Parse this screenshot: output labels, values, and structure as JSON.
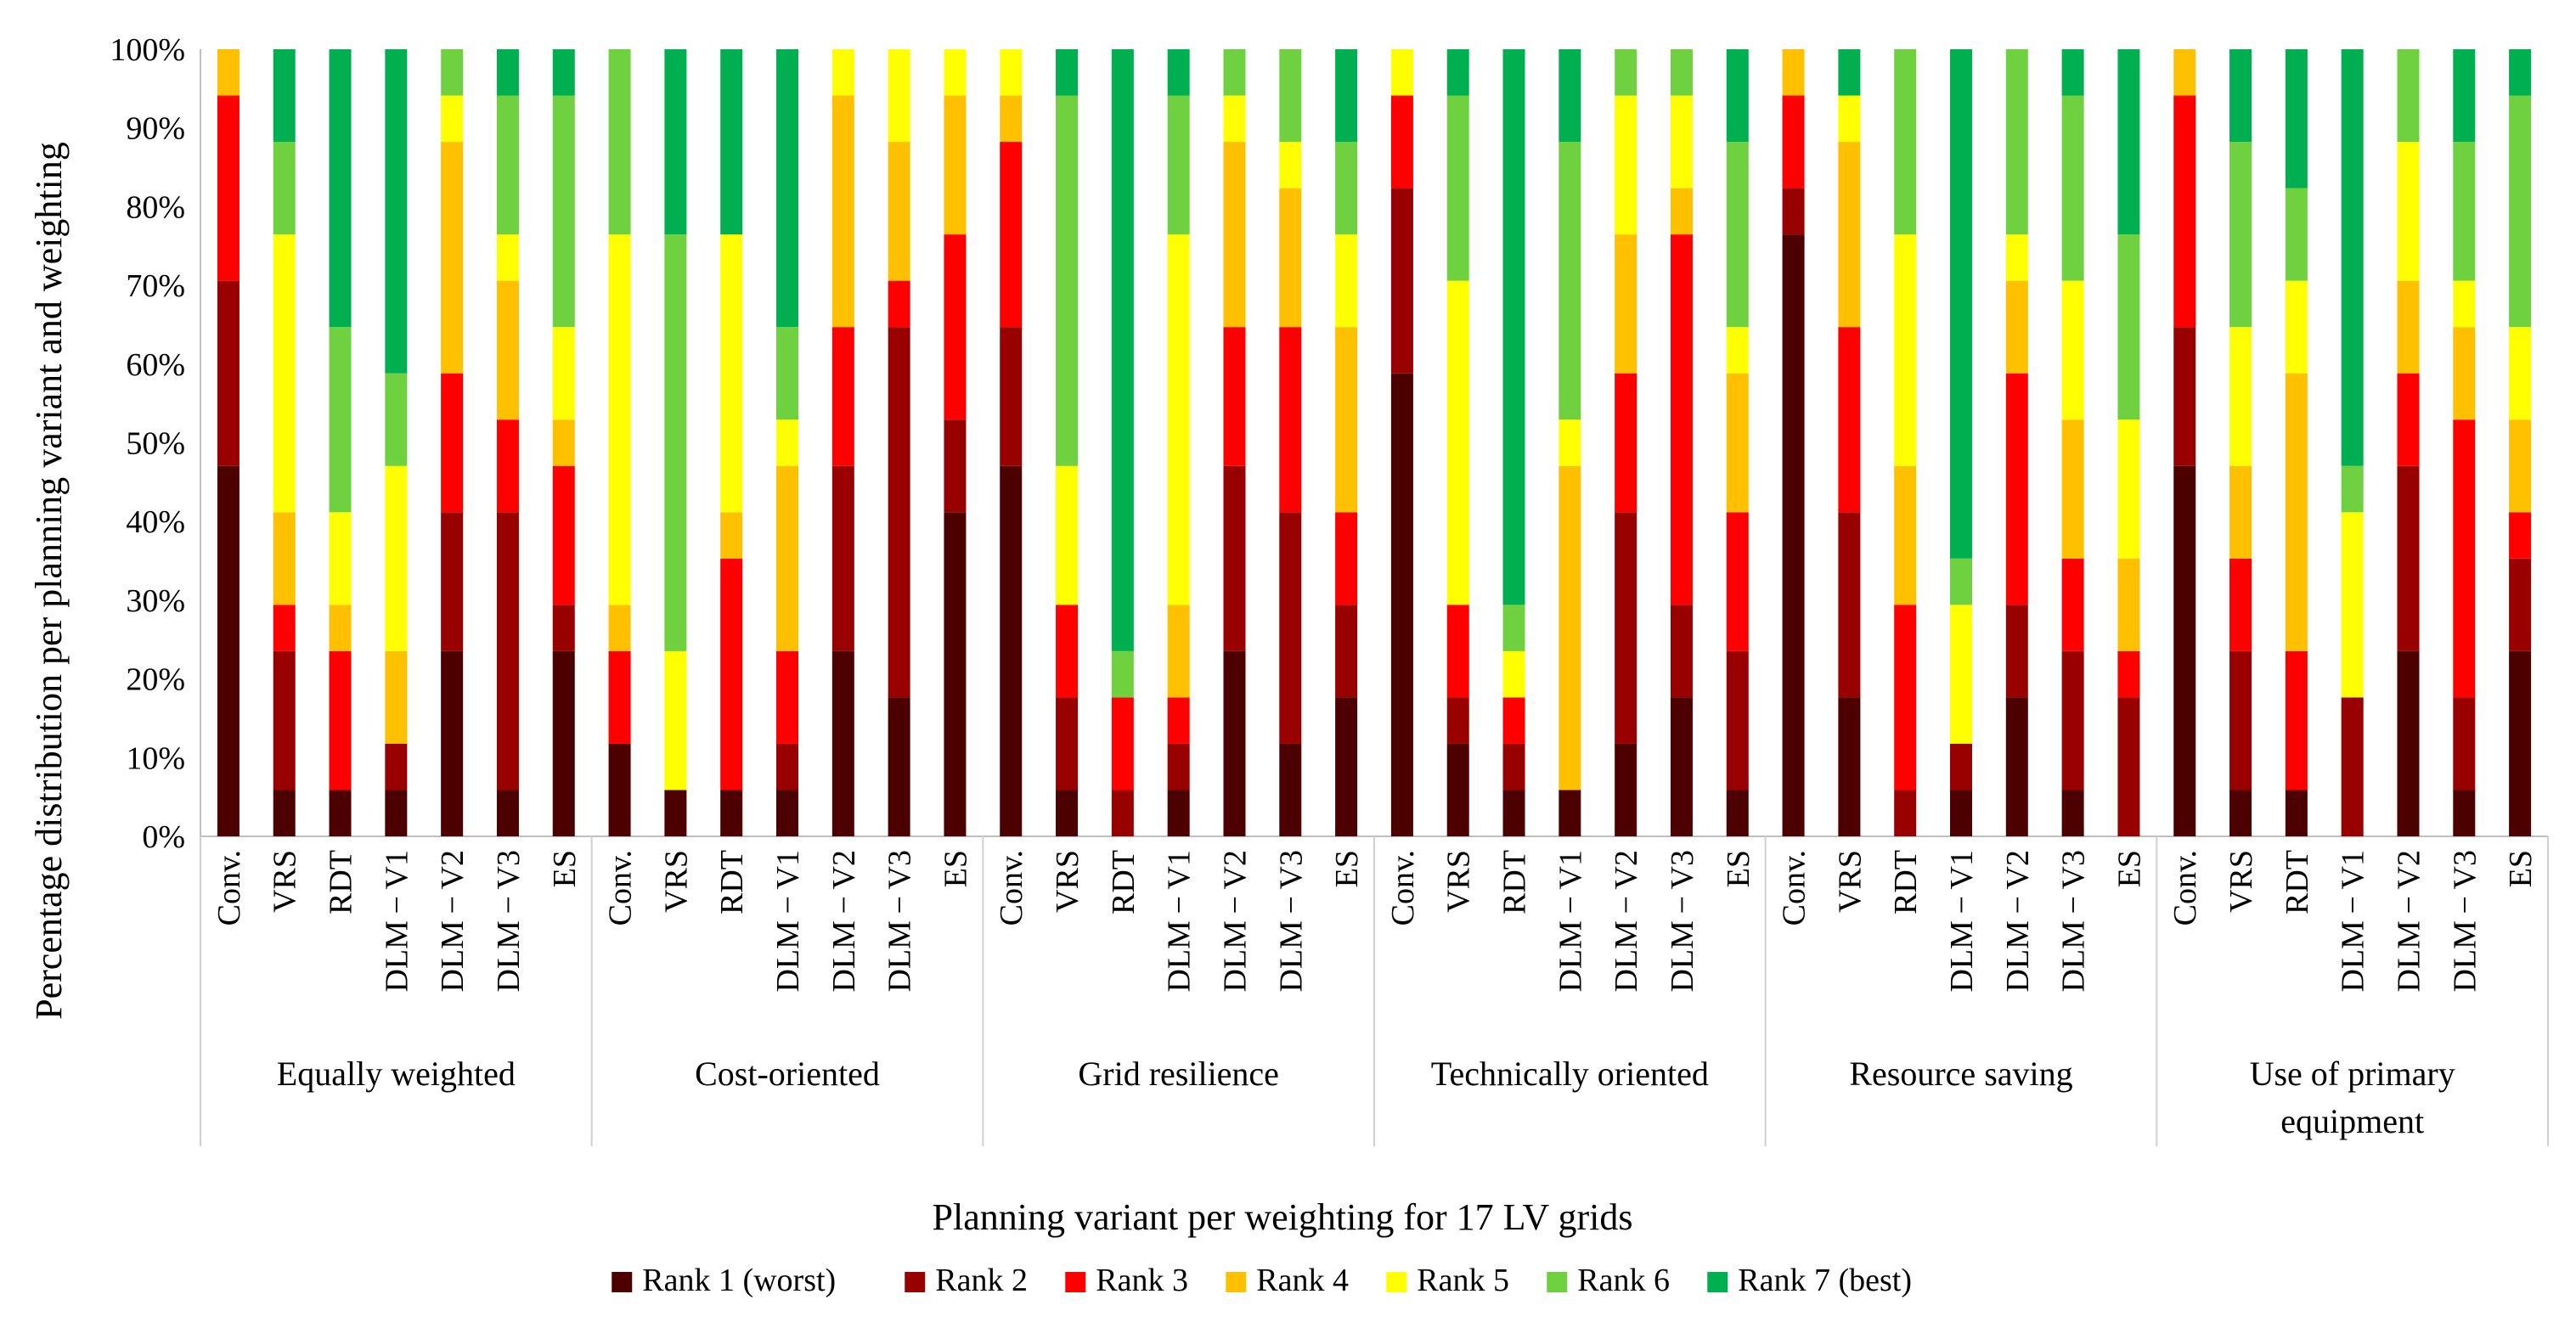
{
  "chart_data": {
    "type": "bar",
    "stacked": true,
    "percent_stacked": true,
    "xlabel": "Planning variant per weighting for 17 LV grids",
    "ylabel": "Percentage distribution per planning variant and weighting",
    "ylim": [
      0,
      100
    ],
    "y_ticks": [
      "0%",
      "10%",
      "20%",
      "30%",
      "40%",
      "50%",
      "60%",
      "70%",
      "80%",
      "90%",
      "100%"
    ],
    "grid": false,
    "legend_position": "bottom",
    "variants": [
      "Conv.",
      "VRS",
      "RDT",
      "DLM − V1",
      "DLM − V2",
      "DLM − V3",
      "ES"
    ],
    "series": [
      {
        "name": "Rank 1 (worst)",
        "color": "#4d0000"
      },
      {
        "name": "Rank 2",
        "color": "#990000"
      },
      {
        "name": "Rank 3",
        "color": "#ff0000"
      },
      {
        "name": "Rank 4",
        "color": "#ffc000"
      },
      {
        "name": "Rank 5",
        "color": "#ffff00"
      },
      {
        "name": "Rank 6",
        "color": "#70d140"
      },
      {
        "name": "Rank 7 (best)",
        "color": "#00b050"
      }
    ],
    "groups": [
      {
        "label": "Equally weighted",
        "bars": [
          [
            8,
            4,
            4,
            1,
            0,
            0,
            0
          ],
          [
            1,
            3,
            1,
            2,
            6,
            2,
            2
          ],
          [
            1,
            0,
            3,
            1,
            2,
            4,
            6
          ],
          [
            1,
            1,
            0,
            2,
            4,
            2,
            7
          ],
          [
            4,
            3,
            3,
            5,
            1,
            1,
            0
          ],
          [
            1,
            6,
            2,
            3,
            1,
            3,
            1
          ],
          [
            4,
            1,
            3,
            1,
            2,
            5,
            1
          ]
        ]
      },
      {
        "label": "Cost-oriented",
        "bars": [
          [
            2,
            0,
            2,
            1,
            8,
            4,
            0
          ],
          [
            1,
            0,
            0,
            0,
            3,
            9,
            4
          ],
          [
            1,
            0,
            5,
            1,
            6,
            0,
            4
          ],
          [
            1,
            1,
            2,
            4,
            1,
            2,
            6
          ],
          [
            4,
            4,
            3,
            5,
            1,
            0,
            0
          ],
          [
            3,
            8,
            1,
            3,
            2,
            0,
            0
          ],
          [
            7,
            2,
            4,
            3,
            1,
            0,
            0
          ]
        ]
      },
      {
        "label": "Grid resilience",
        "bars": [
          [
            8,
            3,
            4,
            1,
            1,
            0,
            0
          ],
          [
            1,
            2,
            2,
            0,
            3,
            8,
            1
          ],
          [
            0,
            1,
            2,
            0,
            0,
            1,
            13
          ],
          [
            1,
            1,
            1,
            2,
            8,
            3,
            1
          ],
          [
            4,
            4,
            3,
            4,
            1,
            1,
            0
          ],
          [
            2,
            5,
            4,
            3,
            1,
            2,
            0
          ],
          [
            3,
            2,
            2,
            4,
            2,
            2,
            2
          ]
        ]
      },
      {
        "label": "Technically oriented",
        "bars": [
          [
            10,
            4,
            2,
            0,
            1,
            0,
            0
          ],
          [
            2,
            1,
            2,
            0,
            7,
            4,
            1
          ],
          [
            1,
            1,
            1,
            0,
            1,
            1,
            12
          ],
          [
            1,
            0,
            0,
            7,
            1,
            6,
            2
          ],
          [
            2,
            5,
            3,
            3,
            3,
            1,
            0
          ],
          [
            3,
            2,
            8,
            1,
            2,
            1,
            0
          ],
          [
            1,
            3,
            3,
            3,
            1,
            4,
            2
          ]
        ]
      },
      {
        "label": "Resource saving",
        "bars": [
          [
            13,
            1,
            2,
            1,
            0,
            0,
            0
          ],
          [
            3,
            4,
            4,
            4,
            1,
            0,
            1
          ],
          [
            0,
            1,
            4,
            3,
            5,
            4,
            0
          ],
          [
            1,
            1,
            0,
            0,
            3,
            1,
            11
          ],
          [
            3,
            2,
            5,
            2,
            1,
            4,
            0
          ],
          [
            1,
            3,
            2,
            3,
            3,
            4,
            1
          ],
          [
            0,
            3,
            1,
            2,
            3,
            4,
            4
          ]
        ]
      },
      {
        "label": "Use of primary equipment",
        "bars": [
          [
            8,
            3,
            5,
            1,
            0,
            0,
            0
          ],
          [
            1,
            3,
            2,
            2,
            3,
            4,
            2
          ],
          [
            1,
            0,
            3,
            6,
            2,
            2,
            3
          ],
          [
            0,
            3,
            0,
            0,
            4,
            1,
            9
          ],
          [
            4,
            4,
            2,
            2,
            3,
            2,
            0
          ],
          [
            1,
            2,
            6,
            2,
            1,
            3,
            2
          ],
          [
            4,
            2,
            1,
            2,
            2,
            5,
            1
          ]
        ]
      }
    ]
  }
}
